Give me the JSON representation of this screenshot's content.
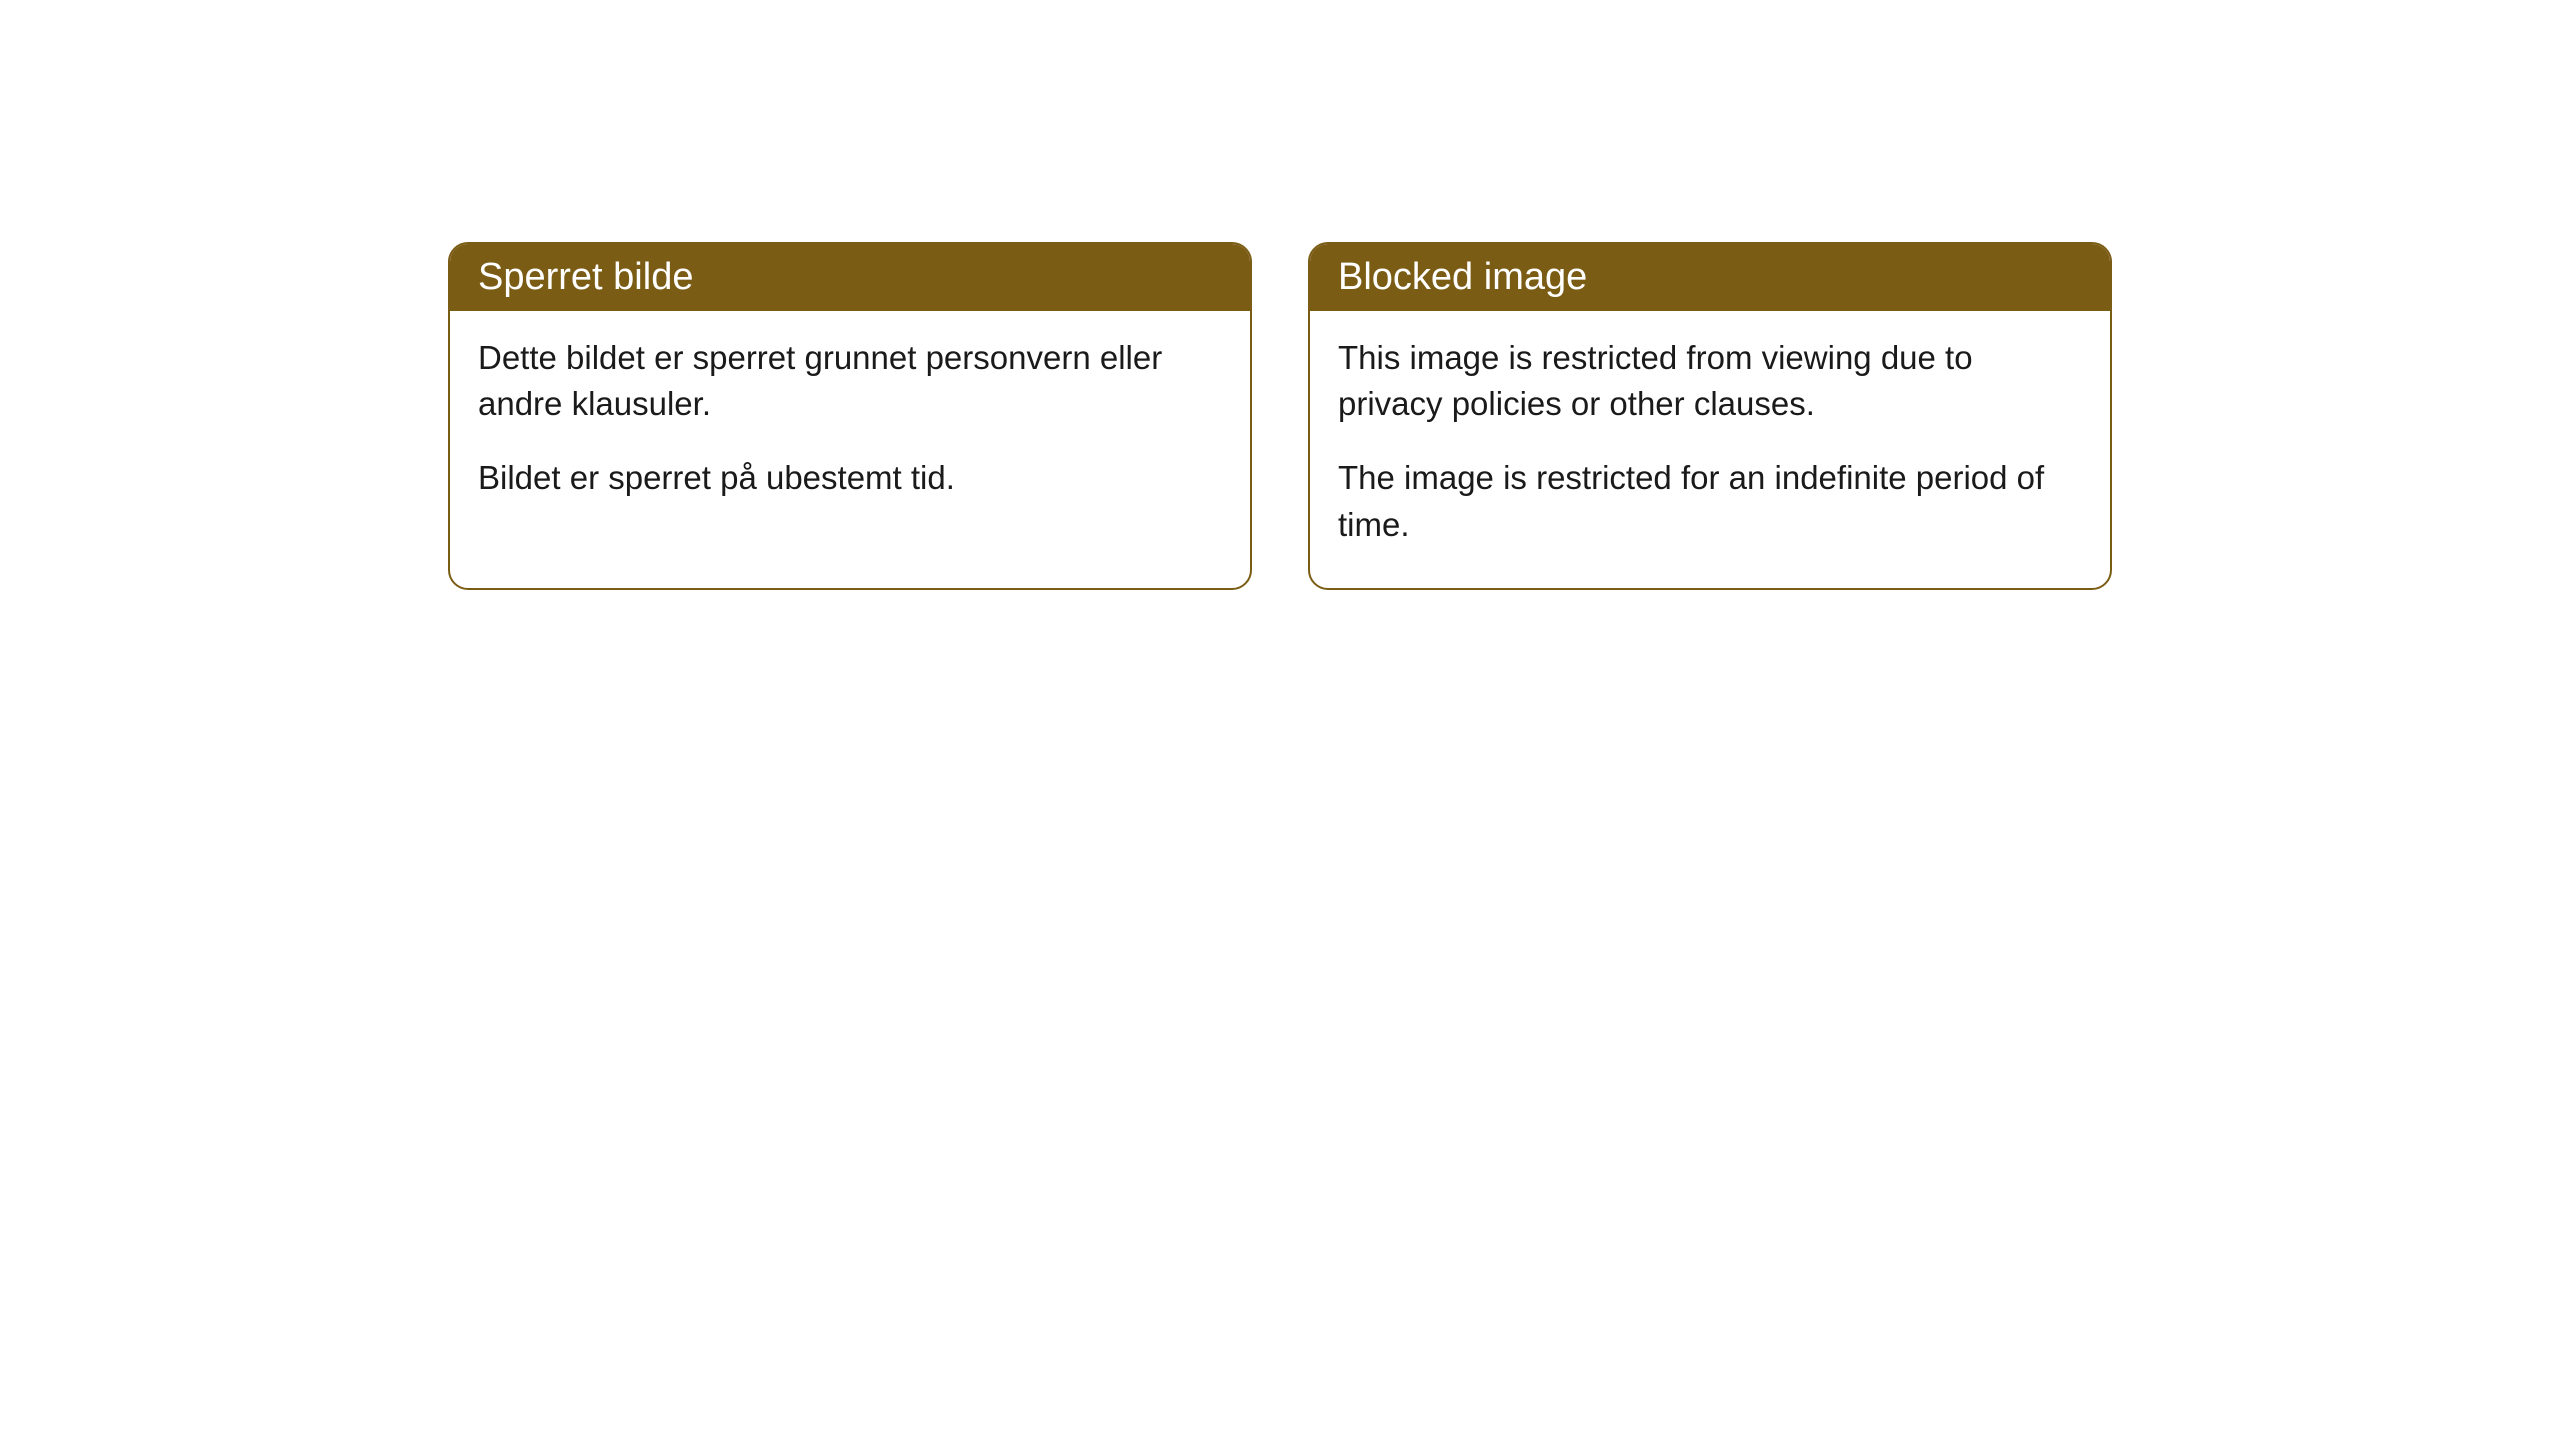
{
  "cards": [
    {
      "title": "Sperret bilde",
      "paragraph1": "Dette bildet er sperret grunnet personvern eller andre klausuler.",
      "paragraph2": "Bildet er sperret på ubestemt tid."
    },
    {
      "title": "Blocked image",
      "paragraph1": "This image is restricted from viewing due to privacy policies or other clauses.",
      "paragraph2": "The image is restricted for an indefinite period of time."
    }
  ],
  "styling": {
    "header_background": "#7a5c15",
    "header_text_color": "#ffffff",
    "card_border_color": "#7a5c15",
    "card_background": "#ffffff",
    "body_text_color": "#1a1a1a",
    "page_background": "#ffffff",
    "border_radius": 20,
    "header_fontsize": 38,
    "body_fontsize": 33
  }
}
